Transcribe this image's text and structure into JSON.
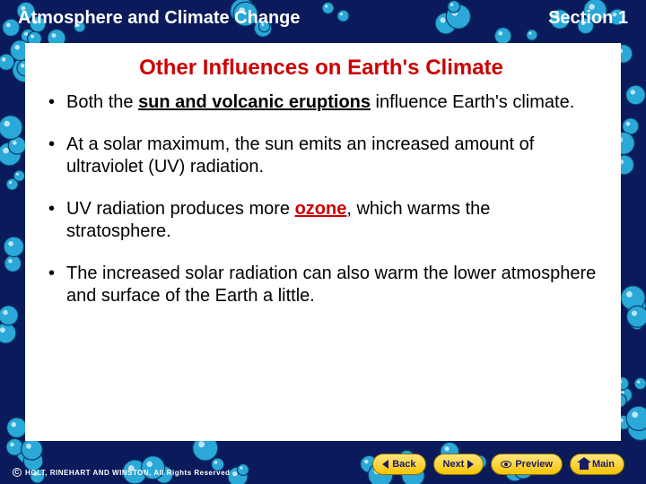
{
  "colors": {
    "background": "#0a1a5a",
    "bubble_primary": "#2aa8d8",
    "bubble_outline": "#083a6a",
    "panel_bg": "#ffffff",
    "title_color": "#cc0000",
    "body_text": "#000000",
    "nav_bg_top": "#ffe680",
    "nav_bg_bottom": "#f5c400",
    "nav_text": "#1a1a6a",
    "header_text": "#ffffff"
  },
  "header": {
    "left": "Atmosphere and Climate Change",
    "right": "Section 1"
  },
  "title": "Other Influences on Earth's Climate",
  "bullets": [
    {
      "runs": [
        {
          "t": "Both the "
        },
        {
          "t": "sun and volcanic eruptions",
          "cls": "u-bold"
        },
        {
          "t": " influence Earth's climate."
        }
      ]
    },
    {
      "runs": [
        {
          "t": "At a solar maximum, the sun emits an increased amount of ultraviolet (UV) radiation."
        }
      ]
    },
    {
      "runs": [
        {
          "t": "UV radiation produces more "
        },
        {
          "t": "ozone",
          "cls": "red-u"
        },
        {
          "t": ", which warms the stratosphere."
        }
      ]
    },
    {
      "runs": [
        {
          "t": "The increased solar radiation can also warm the lower atmosphere and surface of the Earth a little."
        }
      ]
    }
  ],
  "nav": {
    "back": "Back",
    "next": "Next",
    "preview": "Preview",
    "main": "Main"
  },
  "copyright": "HOLT, RINEHART AND WINSTON, All Rights Reserved",
  "border": {
    "bubble_count_top": 22,
    "bubble_count_side": 16,
    "bubble_radius_min": 6,
    "bubble_radius_max": 14,
    "band_thickness": 30
  }
}
